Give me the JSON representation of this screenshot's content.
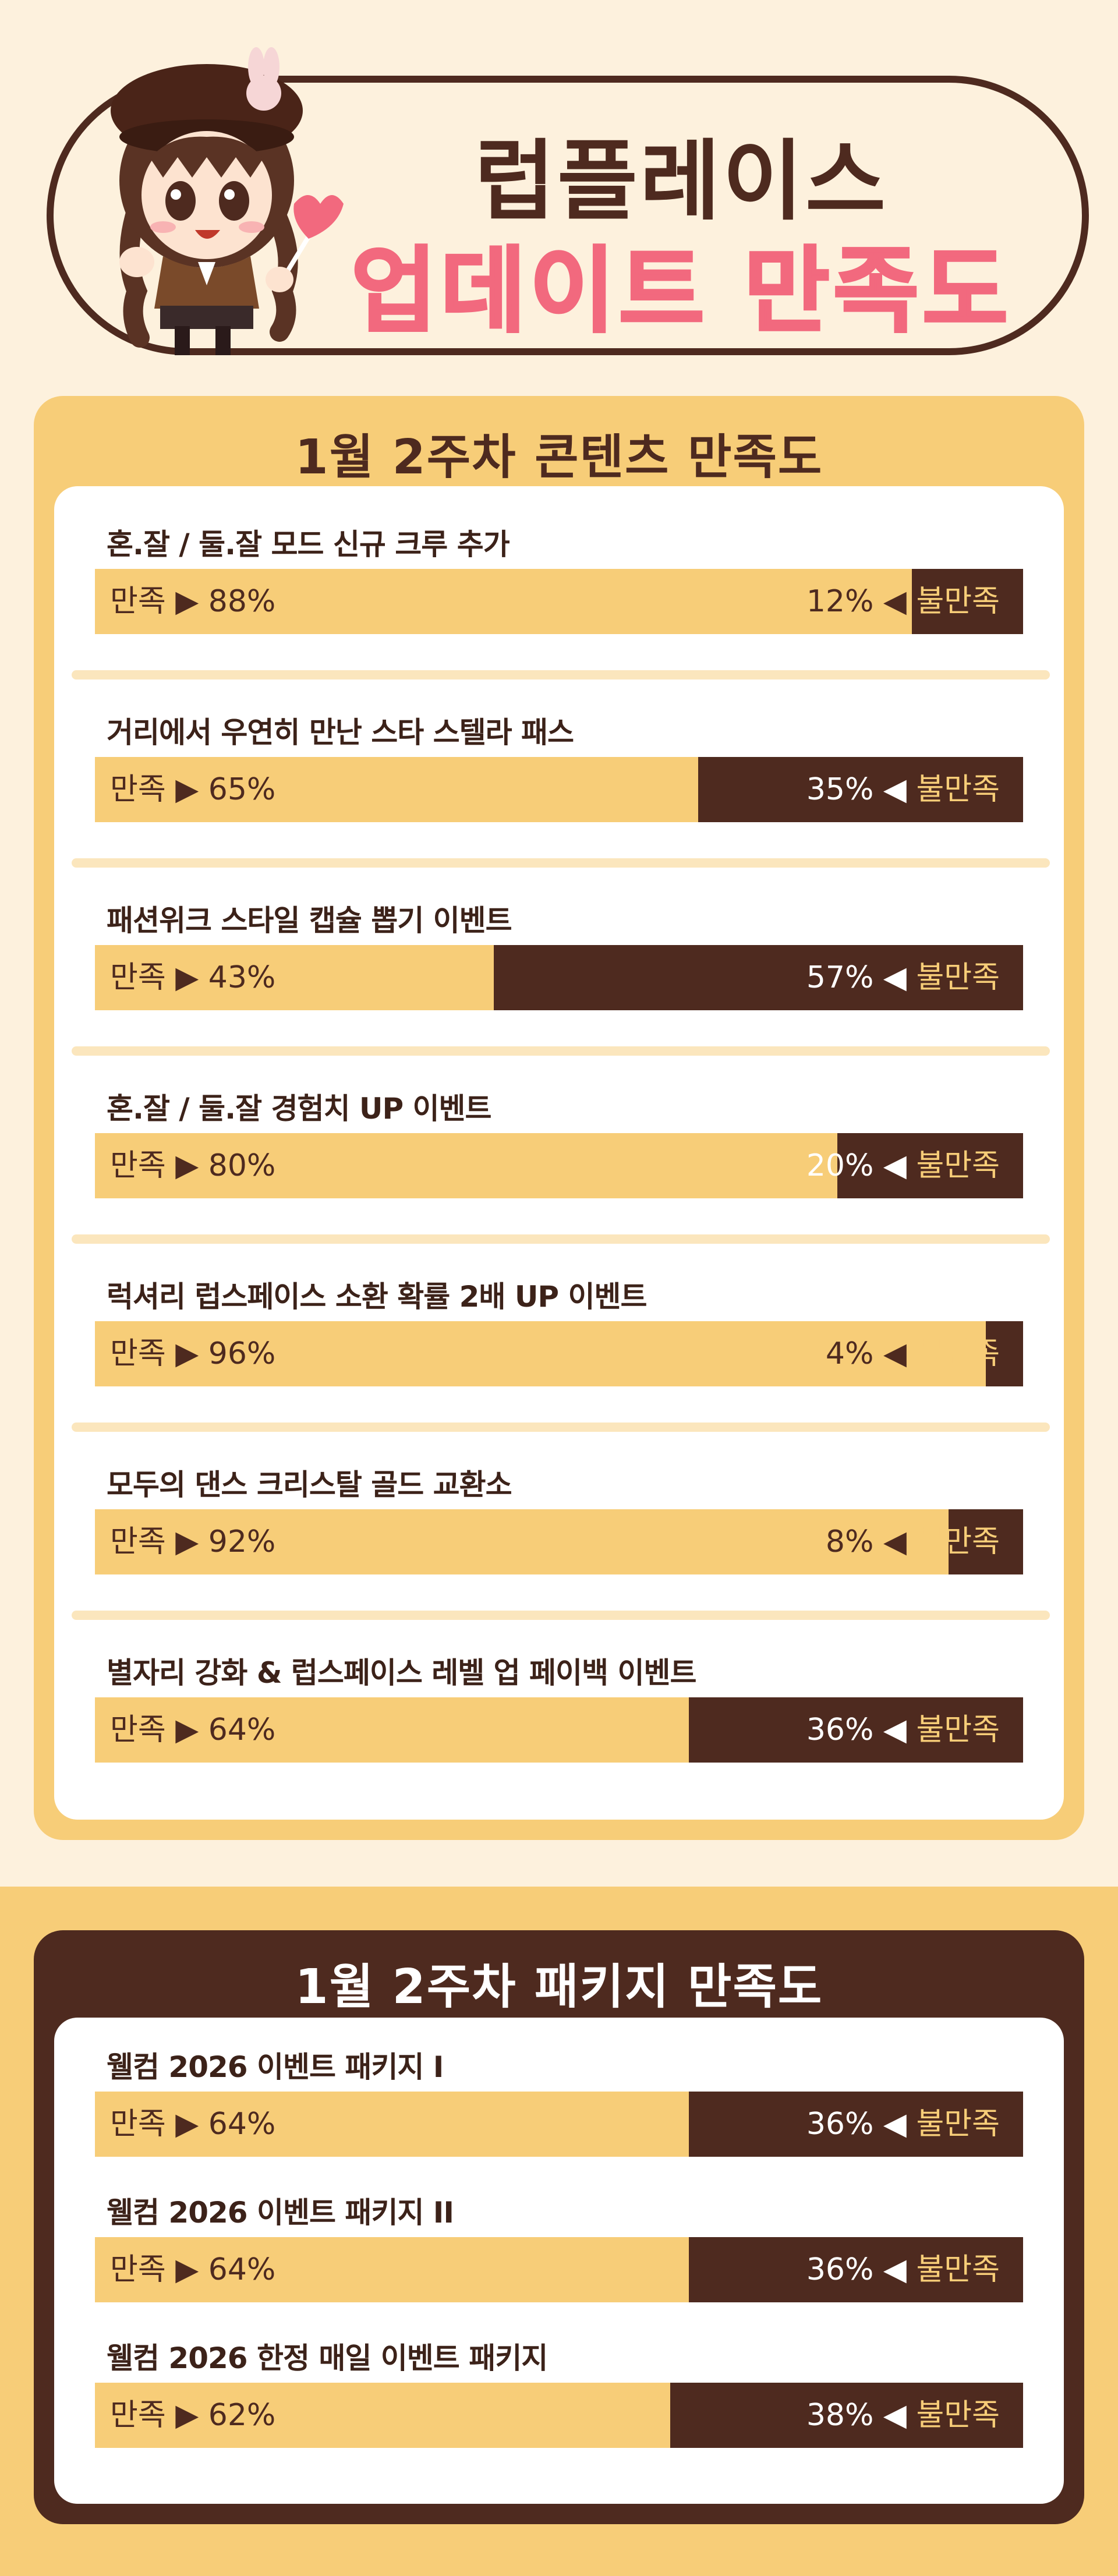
{
  "header": {
    "title": "럽플레이스",
    "subtitle": "업데이트 만족도"
  },
  "labels": {
    "satisfied": "만족",
    "dissatisfied": "불만족",
    "arrow_right": "▶",
    "arrow_left": "◀"
  },
  "colors": {
    "background": "#fdf1dd",
    "brown": "#4e2a1f",
    "yellow": "#f7cd78",
    "pink": "#f2697e"
  },
  "chart_data": [
    {
      "type": "bar",
      "title": "1월 2주차 콘텐츠 만족도",
      "categories": [
        "혼.잘 / 둘.잘 모드 신규 크루 추가",
        "거리에서 우연히 만난 스타 스텔라 패스",
        "패션위크 스타일 캡슐 뽑기 이벤트",
        "혼.잘 / 둘.잘 경험치 UP 이벤트",
        "럭셔리 럽스페이스 소환 확률 2배 UP 이벤트",
        "모두의 댄스 크리스탈 골드 교환소",
        "별자리 강화 & 럽스페이스 레벨 업 페이백 이벤트"
      ],
      "series": [
        {
          "name": "만족",
          "values": [
            88,
            65,
            43,
            80,
            96,
            92,
            64
          ]
        },
        {
          "name": "불만족",
          "values": [
            12,
            35,
            57,
            20,
            4,
            8,
            36
          ]
        }
      ],
      "ylim": [
        0,
        100
      ]
    },
    {
      "type": "bar",
      "title": "1월 2주차 패키지 만족도",
      "categories": [
        "웰컴 2026 이벤트 패키지 I",
        "웰컴 2026 이벤트 패키지 II",
        "웰컴 2026 한정 매일 이벤트 패키지"
      ],
      "series": [
        {
          "name": "만족",
          "values": [
            64,
            64,
            62
          ]
        },
        {
          "name": "불만족",
          "values": [
            36,
            36,
            38
          ]
        }
      ],
      "ylim": [
        0,
        100
      ]
    }
  ]
}
